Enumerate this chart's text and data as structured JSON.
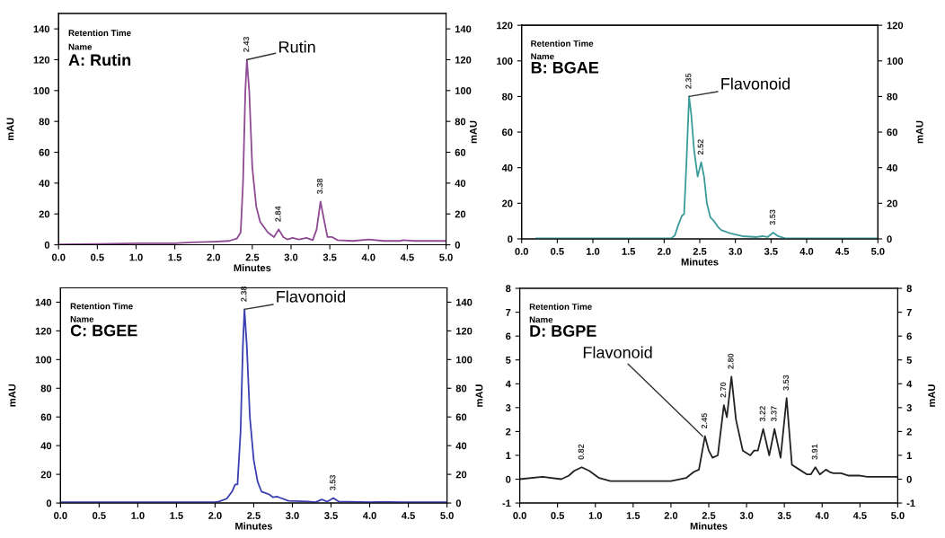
{
  "chart_data": [
    {
      "type": "line",
      "title": "A: Rutin",
      "xlabel": "Minutes",
      "ylabel": "mAU",
      "annotations": [
        "Retention Time",
        "Name",
        {
          "text": "Rutin",
          "x": 2.43,
          "y": 120
        },
        {
          "text": "2.43",
          "x": 2.43,
          "y": 120
        },
        {
          "text": "2.84",
          "x": 2.84,
          "y": 10
        },
        {
          "text": "3.38",
          "x": 3.38,
          "y": 28
        }
      ],
      "xlim": [
        0,
        5
      ],
      "xticks": [
        {
          "value": 0,
          "label": "0.0"
        },
        0.5,
        {
          "value": 1,
          "label": "1.0"
        },
        1.5,
        {
          "value": 2,
          "label": "2.0"
        },
        2.5,
        {
          "value": 3,
          "label": "3.0"
        },
        3.5,
        {
          "value": 4,
          "label": "4.0"
        },
        4.5,
        {
          "value": 5,
          "label": "5.0"
        }
      ],
      "ylim": [
        0,
        150
      ],
      "yticks": [
        0,
        20,
        40,
        60,
        80,
        100,
        120,
        140
      ],
      "y2lim": [
        0,
        150
      ],
      "y2ticks": [
        0,
        20,
        40,
        60,
        80,
        100,
        120,
        140
      ],
      "grid": false,
      "legend": false,
      "series": [
        {
          "color": "#8e4a93",
          "x": [
            0,
            0.5,
            1,
            1.5,
            1.7,
            2,
            2.2,
            2.3,
            2.35,
            2.38,
            2.41,
            2.43,
            2.46,
            2.5,
            2.55,
            2.6,
            2.7,
            2.78,
            2.84,
            2.9,
            2.95,
            3.02,
            3.1,
            3.2,
            3.28,
            3.33,
            3.38,
            3.43,
            3.47,
            3.53,
            3.6,
            3.8,
            4,
            4.2,
            4.4,
            4.45,
            4.6,
            5
          ],
          "values": [
            0.3,
            0.5,
            1,
            1,
            1.5,
            2,
            2.5,
            4,
            8,
            40,
            100,
            120,
            100,
            50,
            25,
            15,
            8,
            5,
            10,
            5,
            3.5,
            4.5,
            3.5,
            4.5,
            3,
            10,
            28,
            15,
            5,
            5,
            3,
            2.5,
            3.5,
            2.5,
            2.5,
            3,
            2.5,
            2.5
          ]
        }
      ]
    },
    {
      "type": "line",
      "title": "B: BGAE",
      "xlabel": "Minutes",
      "ylabel": "mAU",
      "y2label": "mAU",
      "annotations": [
        "Retention Time",
        "Name",
        {
          "text": "Flavonoid",
          "x": 2.35,
          "y": 80
        },
        {
          "text": "2.35",
          "x": 2.35,
          "y": 80
        },
        {
          "text": "2.52",
          "x": 2.52,
          "y": 43
        },
        {
          "text": "3.53",
          "x": 3.53,
          "y": 3.5
        }
      ],
      "xlim": [
        0,
        5
      ],
      "xticks": [
        {
          "value": 0,
          "label": "0.0"
        },
        0.5,
        {
          "value": 1,
          "label": "1.0"
        },
        1.5,
        {
          "value": 2,
          "label": "2.0"
        },
        2.5,
        {
          "value": 3,
          "label": "3.0"
        },
        3.5,
        {
          "value": 4,
          "label": "4.0"
        },
        4.5,
        {
          "value": 5,
          "label": "5.0"
        }
      ],
      "ylim": [
        0,
        120
      ],
      "yticks": [
        0,
        20,
        40,
        60,
        80,
        100,
        120
      ],
      "y2lim": [
        0,
        120
      ],
      "y2ticks": [
        0,
        20,
        40,
        60,
        80,
        100,
        120
      ],
      "grid": false,
      "legend": false,
      "series": [
        {
          "color": "#3a9c9a",
          "x": [
            0.2,
            0.45,
            2.1,
            2.15,
            2.2,
            2.25,
            2.28,
            2.31,
            2.35,
            2.38,
            2.42,
            2.47,
            2.52,
            2.56,
            2.6,
            2.65,
            2.7,
            2.75,
            2.8,
            2.9,
            3.0,
            3.1,
            3.3,
            3.38,
            3.45,
            3.53,
            3.6,
            3.7,
            4,
            4.1,
            5
          ],
          "values": [
            0.3,
            0.3,
            0.3,
            2,
            8,
            13,
            14,
            40,
            80,
            70,
            50,
            35,
            43,
            35,
            20,
            12,
            10,
            7,
            5,
            3.5,
            2.5,
            1.5,
            1,
            1.5,
            1,
            3.5,
            1.5,
            0.3,
            0.3,
            0.3,
            0.3
          ]
        }
      ]
    },
    {
      "type": "line",
      "title": "C: BGEE",
      "xlabel": "Minutes",
      "ylabel": "mAU",
      "annotations": [
        "Retention Time",
        "Name",
        {
          "text": "Flavonoid",
          "x": 2.38,
          "y": 135
        },
        {
          "text": "2.38",
          "x": 2.38,
          "y": 135
        },
        {
          "text": "3.53",
          "x": 3.53,
          "y": 3.5
        }
      ],
      "xlim": [
        0,
        5
      ],
      "xticks": [
        {
          "value": 0,
          "label": "0.0"
        },
        0.5,
        {
          "value": 1,
          "label": "1.0"
        },
        1.5,
        {
          "value": 2,
          "label": "2.0"
        },
        2.5,
        {
          "value": 3,
          "label": "3.0"
        },
        3.5,
        {
          "value": 4,
          "label": "4.0"
        },
        4.5,
        {
          "value": 5,
          "label": "5.0"
        }
      ],
      "ylim": [
        0,
        150
      ],
      "yticks": [
        0,
        20,
        40,
        60,
        80,
        100,
        120,
        140
      ],
      "y2lim": [
        0,
        150
      ],
      "y2ticks": [
        0,
        20,
        40,
        60,
        80,
        100,
        120,
        140
      ],
      "grid": false,
      "legend": false,
      "series": [
        {
          "color": "#3b3fb0",
          "x": [
            0,
            1.9,
            2.0,
            2.05,
            2.15,
            2.22,
            2.26,
            2.29,
            2.33,
            2.36,
            2.38,
            2.41,
            2.45,
            2.5,
            2.55,
            2.6,
            2.65,
            2.7,
            2.75,
            2.8,
            2.85,
            2.95,
            3.2,
            3.3,
            3.38,
            3.45,
            3.53,
            3.6,
            4,
            4.1,
            4.25,
            4.4,
            5
          ],
          "values": [
            0.6,
            0.6,
            0.6,
            1,
            3,
            8,
            13,
            13,
            50,
            110,
            135,
            110,
            60,
            30,
            15,
            8,
            7,
            6,
            4,
            4.5,
            3.5,
            1.5,
            1,
            0.6,
            2.5,
            1,
            3.5,
            1,
            0.6,
            0.8,
            0.8,
            0.6,
            0.6
          ]
        }
      ]
    },
    {
      "type": "line",
      "title": "D: BGPE",
      "xlabel": "Minutes",
      "ylabel": "mAU",
      "y2label": "mAU",
      "annotations": [
        "Retention Time",
        "Name",
        {
          "text": "Flavonoid",
          "x": 2.42,
          "y": 1.8
        },
        {
          "text": "0.82",
          "x": 0.82,
          "y": 0.5
        },
        {
          "text": "2.45",
          "x": 2.45,
          "y": 1.8
        },
        {
          "text": "2.70",
          "x": 2.7,
          "y": 3.1
        },
        {
          "text": "2.80",
          "x": 2.8,
          "y": 4.3
        },
        {
          "text": "3.22",
          "x": 3.22,
          "y": 2.1
        },
        {
          "text": "3.37",
          "x": 3.37,
          "y": 2.1
        },
        {
          "text": "3.53",
          "x": 3.53,
          "y": 3.4
        },
        {
          "text": "3.91",
          "x": 3.91,
          "y": 0.5
        }
      ],
      "xlim": [
        0,
        5
      ],
      "xticks": [
        {
          "value": 0,
          "label": "0.0"
        },
        0.5,
        {
          "value": 1,
          "label": "1.0"
        },
        1.5,
        {
          "value": 2,
          "label": "2.0"
        },
        2.5,
        {
          "value": 3,
          "label": "3.0"
        },
        3.5,
        {
          "value": 4,
          "label": "4.0"
        },
        4.5,
        {
          "value": 5,
          "label": "5.0"
        }
      ],
      "ylim": [
        -1,
        8
      ],
      "yticks": [
        {
          "value": -1,
          "label": "-1"
        },
        0,
        1,
        2,
        3,
        4,
        5,
        6,
        7,
        8
      ],
      "y2lim": [
        -1,
        8
      ],
      "y2ticks": [
        {
          "value": -1,
          "label": "-1"
        },
        0,
        1,
        2,
        3,
        4,
        5,
        6,
        7,
        8
      ],
      "grid": false,
      "legend": false,
      "series": [
        {
          "color": "#222222",
          "x": [
            0,
            0.3,
            0.55,
            0.65,
            0.72,
            0.82,
            0.92,
            1.05,
            1.2,
            1.5,
            2.0,
            2.2,
            2.3,
            2.37,
            2.45,
            2.5,
            2.55,
            2.62,
            2.7,
            2.74,
            2.8,
            2.86,
            2.95,
            3.05,
            3.1,
            3.15,
            3.22,
            3.3,
            3.37,
            3.45,
            3.53,
            3.6,
            3.7,
            3.8,
            3.85,
            3.91,
            3.97,
            4.05,
            4.1,
            4.15,
            4.25,
            4.35,
            4.5,
            4.6,
            4.8,
            5
          ],
          "values": [
            0,
            0.1,
            0,
            0.15,
            0.35,
            0.5,
            0.35,
            0.05,
            -0.08,
            -0.08,
            -0.08,
            0.05,
            0.3,
            0.4,
            1.8,
            1.2,
            0.9,
            1.0,
            3.1,
            2.6,
            4.3,
            2.5,
            1.2,
            1.0,
            1.2,
            1.2,
            2.1,
            1.0,
            2.1,
            0.9,
            3.4,
            0.6,
            0.4,
            0.2,
            0.2,
            0.5,
            0.2,
            0.4,
            0.3,
            0.25,
            0.25,
            0.15,
            0.15,
            0.1,
            0.1,
            0.1
          ]
        }
      ]
    }
  ]
}
